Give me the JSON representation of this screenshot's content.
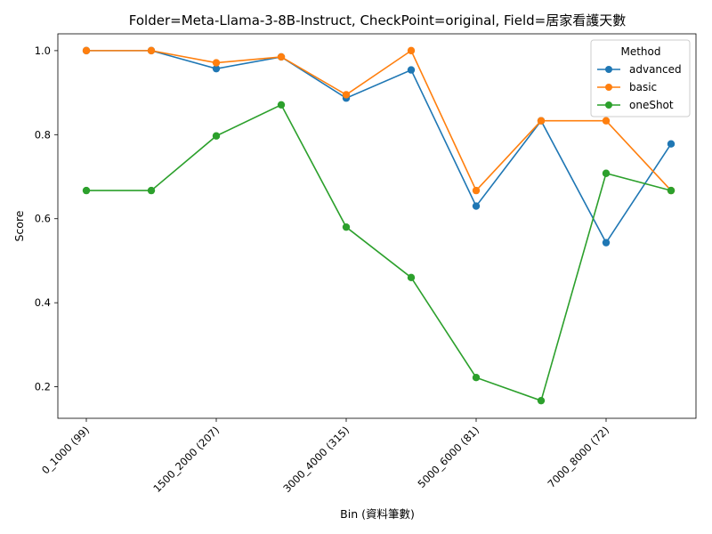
{
  "chart_data": {
    "type": "line",
    "title": "Folder=Meta-Llama-3-8B-Instruct, CheckPoint=original, Field=居家看護天數",
    "xlabel": "Bin (資料筆數)",
    "ylabel": "Score",
    "categories": [
      "0_1000 (99)",
      "",
      "1500_2000 (207)",
      "",
      "3000_4000 (315)",
      "",
      "5000_6000 (81)",
      "",
      "7000_8000 (72)",
      ""
    ],
    "ylim": [
      0.125,
      1.04
    ],
    "yticks": [
      "0.2",
      "0.4",
      "0.6",
      "0.8",
      "1.0"
    ],
    "legend_title": "Method",
    "legend_position": "top-right",
    "grid": false,
    "series": [
      {
        "name": "advanced",
        "color": "#1f77b4",
        "values": [
          1.0,
          1.0,
          0.957,
          0.985,
          0.887,
          0.954,
          0.63,
          0.833,
          0.543,
          0.778
        ]
      },
      {
        "name": "basic",
        "color": "#ff7f0e",
        "values": [
          1.0,
          1.0,
          0.971,
          0.985,
          0.895,
          1.0,
          0.667,
          0.833,
          0.833,
          0.667
        ]
      },
      {
        "name": "oneShot",
        "color": "#2ca02c",
        "values": [
          0.667,
          0.667,
          0.797,
          0.871,
          0.58,
          0.46,
          0.222,
          0.167,
          0.708,
          0.667
        ]
      }
    ]
  }
}
